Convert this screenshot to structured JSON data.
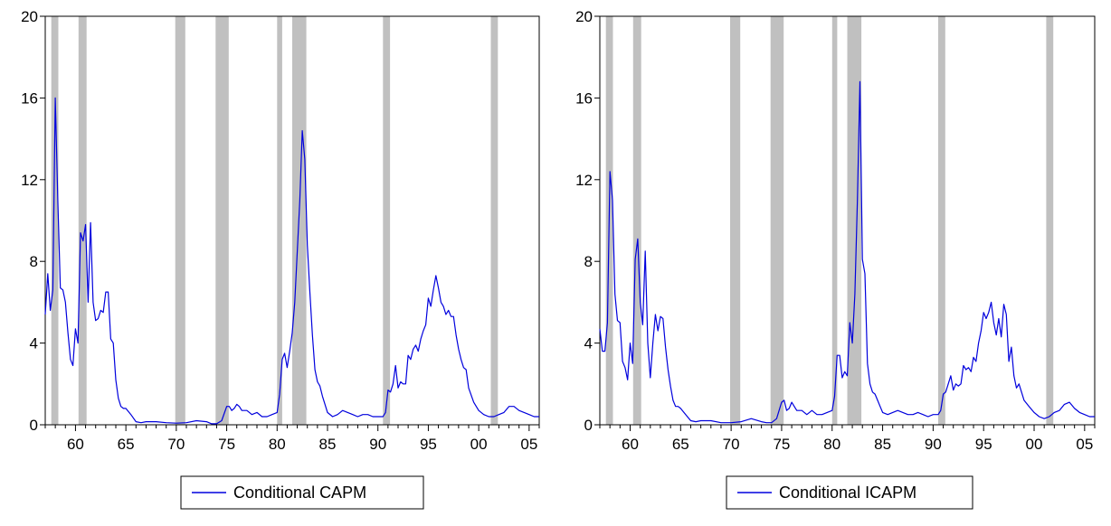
{
  "colors": {
    "line": "#0000dd",
    "recession": "#c0c0c0",
    "frame": "#000000"
  },
  "recessions": [
    [
      1957.6,
      1958.3
    ],
    [
      1960.3,
      1961.1
    ],
    [
      1969.9,
      1970.9
    ],
    [
      1973.9,
      1975.2
    ],
    [
      1980.0,
      1980.5
    ],
    [
      1981.5,
      1982.9
    ],
    [
      1990.5,
      1991.2
    ],
    [
      2001.2,
      2001.9
    ]
  ],
  "chart_data": [
    {
      "type": "line",
      "title": "",
      "xlabel": "",
      "ylabel": "",
      "xlim": [
        1957,
        2006
      ],
      "ylim": [
        0,
        20
      ],
      "x_ticks": [
        1960,
        1965,
        1970,
        1975,
        1980,
        1985,
        1990,
        1995,
        2000,
        2005
      ],
      "x_tick_labels": [
        "60",
        "65",
        "70",
        "75",
        "80",
        "85",
        "90",
        "95",
        "00",
        "05"
      ],
      "y_ticks": [
        0,
        4,
        8,
        12,
        16,
        20
      ],
      "y_tick_labels": [
        "0",
        "4",
        "8",
        "12",
        "16",
        "20"
      ],
      "legend": {
        "position": "bottom-center"
      },
      "series": [
        {
          "name": "Conditional CAPM",
          "x": [
            1957.0,
            1957.25,
            1957.5,
            1957.75,
            1958.0,
            1958.25,
            1958.5,
            1958.75,
            1959.0,
            1959.25,
            1959.5,
            1959.75,
            1960.0,
            1960.25,
            1960.5,
            1960.75,
            1961.0,
            1961.25,
            1961.5,
            1961.75,
            1962.0,
            1962.25,
            1962.5,
            1962.75,
            1963.0,
            1963.25,
            1963.5,
            1963.75,
            1964.0,
            1964.25,
            1964.5,
            1964.75,
            1965.0,
            1965.5,
            1966.0,
            1966.5,
            1967.0,
            1968.0,
            1969.0,
            1970.0,
            1971.0,
            1972.0,
            1973.0,
            1973.5,
            1974.0,
            1974.5,
            1975.0,
            1975.25,
            1975.5,
            1975.75,
            1976.0,
            1976.25,
            1976.5,
            1977.0,
            1977.5,
            1978.0,
            1978.5,
            1979.0,
            1979.5,
            1980.0,
            1980.25,
            1980.5,
            1980.75,
            1981.0,
            1981.25,
            1981.5,
            1981.75,
            1982.0,
            1982.25,
            1982.5,
            1982.75,
            1983.0,
            1983.25,
            1983.5,
            1983.75,
            1984.0,
            1984.25,
            1984.5,
            1984.75,
            1985.0,
            1985.5,
            1986.0,
            1986.5,
            1987.0,
            1987.5,
            1988.0,
            1988.5,
            1989.0,
            1989.5,
            1990.0,
            1990.5,
            1990.75,
            1991.0,
            1991.25,
            1991.5,
            1991.75,
            1992.0,
            1992.25,
            1992.5,
            1992.75,
            1993.0,
            1993.25,
            1993.5,
            1993.75,
            1994.0,
            1994.25,
            1994.5,
            1994.75,
            1995.0,
            1995.25,
            1995.5,
            1995.75,
            1996.0,
            1996.25,
            1996.5,
            1996.75,
            1997.0,
            1997.25,
            1997.5,
            1997.75,
            1998.0,
            1998.25,
            1998.5,
            1998.75,
            1999.0,
            1999.5,
            2000.0,
            2000.5,
            2001.0,
            2001.5,
            2002.0,
            2002.5,
            2003.0,
            2003.5,
            2004.0,
            2004.5,
            2005.0,
            2005.5,
            2006.0
          ],
          "y": [
            5.4,
            7.4,
            5.6,
            6.6,
            16.0,
            11.0,
            6.7,
            6.6,
            6.0,
            4.5,
            3.2,
            2.9,
            4.7,
            4.0,
            9.4,
            9.0,
            9.8,
            6.0,
            9.9,
            6.0,
            5.1,
            5.2,
            5.6,
            5.5,
            6.5,
            6.5,
            4.2,
            4.0,
            2.2,
            1.3,
            0.9,
            0.8,
            0.8,
            0.5,
            0.15,
            0.1,
            0.15,
            0.15,
            0.1,
            0.08,
            0.1,
            0.2,
            0.15,
            0.05,
            0.05,
            0.2,
            0.9,
            0.9,
            0.7,
            0.8,
            1.0,
            0.9,
            0.7,
            0.7,
            0.5,
            0.6,
            0.4,
            0.4,
            0.5,
            0.6,
            1.5,
            3.2,
            3.5,
            2.8,
            3.6,
            4.5,
            6.0,
            8.5,
            11.0,
            14.4,
            13.0,
            8.8,
            6.5,
            4.4,
            2.7,
            2.1,
            1.9,
            1.4,
            1.0,
            0.6,
            0.4,
            0.5,
            0.7,
            0.6,
            0.5,
            0.4,
            0.5,
            0.5,
            0.4,
            0.4,
            0.4,
            0.6,
            1.7,
            1.6,
            2.0,
            2.9,
            1.8,
            2.1,
            2.0,
            2.0,
            3.4,
            3.2,
            3.7,
            3.9,
            3.6,
            4.2,
            4.6,
            4.9,
            6.2,
            5.8,
            6.6,
            7.3,
            6.7,
            6.0,
            5.8,
            5.4,
            5.6,
            5.3,
            5.3,
            4.4,
            3.7,
            3.2,
            2.8,
            2.7,
            1.8,
            1.1,
            0.7,
            0.5,
            0.4,
            0.4,
            0.5,
            0.6,
            0.9,
            0.9,
            0.7,
            0.6,
            0.5,
            0.4,
            0.4
          ]
        }
      ]
    },
    {
      "type": "line",
      "title": "",
      "xlabel": "",
      "ylabel": "",
      "xlim": [
        1957,
        2006
      ],
      "ylim": [
        0,
        20
      ],
      "x_ticks": [
        1960,
        1965,
        1970,
        1975,
        1980,
        1985,
        1990,
        1995,
        2000,
        2005
      ],
      "x_tick_labels": [
        "60",
        "65",
        "70",
        "75",
        "80",
        "85",
        "90",
        "95",
        "00",
        "05"
      ],
      "y_ticks": [
        0,
        4,
        8,
        12,
        16,
        20
      ],
      "y_tick_labels": [
        "0",
        "4",
        "8",
        "12",
        "16",
        "20"
      ],
      "legend": {
        "position": "bottom-center"
      },
      "series": [
        {
          "name": "Conditional ICAPM",
          "x": [
            1957.0,
            1957.25,
            1957.5,
            1957.75,
            1958.0,
            1958.25,
            1958.5,
            1958.75,
            1959.0,
            1959.25,
            1959.5,
            1959.75,
            1960.0,
            1960.25,
            1960.5,
            1960.75,
            1961.0,
            1961.25,
            1961.5,
            1961.75,
            1962.0,
            1962.25,
            1962.5,
            1962.75,
            1963.0,
            1963.25,
            1963.5,
            1963.75,
            1964.0,
            1964.25,
            1964.5,
            1964.75,
            1965.0,
            1965.5,
            1966.0,
            1966.5,
            1967.0,
            1968.0,
            1969.0,
            1970.0,
            1971.0,
            1972.0,
            1973.0,
            1973.5,
            1974.0,
            1974.5,
            1975.0,
            1975.25,
            1975.5,
            1975.75,
            1976.0,
            1976.25,
            1976.5,
            1977.0,
            1977.5,
            1978.0,
            1978.5,
            1979.0,
            1979.5,
            1980.0,
            1980.25,
            1980.5,
            1980.75,
            1981.0,
            1981.25,
            1981.5,
            1981.75,
            1982.0,
            1982.25,
            1982.5,
            1982.75,
            1983.0,
            1983.25,
            1983.5,
            1983.75,
            1984.0,
            1984.25,
            1984.5,
            1984.75,
            1985.0,
            1985.5,
            1986.0,
            1986.5,
            1987.0,
            1987.5,
            1988.0,
            1988.5,
            1989.0,
            1989.5,
            1990.0,
            1990.5,
            1990.75,
            1991.0,
            1991.25,
            1991.5,
            1991.75,
            1992.0,
            1992.25,
            1992.5,
            1992.75,
            1993.0,
            1993.25,
            1993.5,
            1993.75,
            1994.0,
            1994.25,
            1994.5,
            1994.75,
            1995.0,
            1995.25,
            1995.5,
            1995.75,
            1996.0,
            1996.25,
            1996.5,
            1996.75,
            1997.0,
            1997.25,
            1997.5,
            1997.75,
            1998.0,
            1998.25,
            1998.5,
            1998.75,
            1999.0,
            1999.5,
            2000.0,
            2000.5,
            2001.0,
            2001.5,
            2002.0,
            2002.5,
            2003.0,
            2003.5,
            2004.0,
            2004.5,
            2005.0,
            2005.5,
            2006.0
          ],
          "y": [
            4.7,
            3.6,
            3.6,
            5.0,
            12.4,
            11.0,
            6.4,
            5.1,
            5.0,
            3.1,
            2.8,
            2.2,
            4.0,
            3.0,
            8.1,
            9.1,
            6.0,
            4.9,
            8.5,
            4.0,
            2.3,
            4.0,
            5.4,
            4.6,
            5.3,
            5.2,
            3.8,
            2.7,
            1.9,
            1.2,
            0.9,
            0.9,
            0.8,
            0.5,
            0.2,
            0.15,
            0.2,
            0.2,
            0.1,
            0.1,
            0.15,
            0.3,
            0.15,
            0.1,
            0.1,
            0.3,
            1.1,
            1.2,
            0.7,
            0.8,
            1.1,
            0.9,
            0.7,
            0.7,
            0.5,
            0.7,
            0.5,
            0.5,
            0.6,
            0.7,
            1.4,
            3.4,
            3.4,
            2.3,
            2.6,
            2.4,
            5.0,
            4.0,
            6.4,
            11.0,
            16.8,
            8.1,
            7.4,
            3.0,
            2.0,
            1.6,
            1.5,
            1.2,
            0.9,
            0.6,
            0.5,
            0.6,
            0.7,
            0.6,
            0.5,
            0.5,
            0.6,
            0.5,
            0.4,
            0.5,
            0.5,
            0.7,
            1.5,
            1.6,
            2.0,
            2.4,
            1.7,
            2.0,
            1.9,
            2.0,
            2.9,
            2.7,
            2.8,
            2.6,
            3.3,
            3.1,
            4.0,
            4.6,
            5.5,
            5.2,
            5.5,
            6.0,
            5.0,
            4.4,
            5.2,
            4.3,
            5.9,
            5.4,
            3.1,
            3.8,
            2.4,
            1.8,
            2.0,
            1.6,
            1.2,
            0.9,
            0.6,
            0.4,
            0.3,
            0.4,
            0.6,
            0.7,
            1.0,
            1.1,
            0.8,
            0.6,
            0.5,
            0.4,
            0.4
          ]
        }
      ]
    }
  ]
}
